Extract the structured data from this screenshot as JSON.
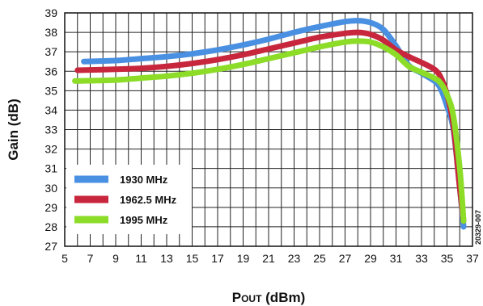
{
  "chart_data": {
    "type": "line",
    "xlabel_main": "P",
    "xlabel_sub": "OUT",
    "xlabel_unit": " (dBm)",
    "ylabel": "Gain (dB)",
    "figure_code": "20329-007",
    "xlim": [
      5,
      37
    ],
    "ylim": [
      27,
      39
    ],
    "x_ticks": [
      5,
      7,
      9,
      11,
      13,
      15,
      17,
      19,
      21,
      23,
      25,
      27,
      29,
      31,
      33,
      35,
      37
    ],
    "y_ticks": [
      27,
      28,
      29,
      30,
      31,
      32,
      33,
      34,
      35,
      36,
      37,
      38,
      39
    ],
    "grid": true,
    "legend_position": "bottom-left",
    "series": [
      {
        "name": "1930 MHz",
        "color": "#4a90e2",
        "x": [
          6.5,
          9,
          11,
          13,
          15,
          17,
          19,
          21,
          23,
          25,
          27,
          28,
          29,
          30,
          31,
          32,
          33,
          34,
          34.5,
          35,
          35.5,
          36,
          36.3
        ],
        "y": [
          36.5,
          36.55,
          36.65,
          36.75,
          36.9,
          37.1,
          37.35,
          37.65,
          38.0,
          38.3,
          38.55,
          38.6,
          38.5,
          38.15,
          37.3,
          36.3,
          35.9,
          35.5,
          35.1,
          34.2,
          33.0,
          30.0,
          28.0
        ]
      },
      {
        "name": "1962.5 MHz",
        "color": "#c8263c",
        "x": [
          6.0,
          9,
          11,
          13,
          15,
          17,
          19,
          21,
          23,
          25,
          27,
          28,
          29,
          30,
          31,
          32,
          33,
          34,
          34.5,
          35,
          35.5,
          36,
          36.3
        ],
        "y": [
          36.05,
          36.1,
          36.15,
          36.25,
          36.4,
          36.6,
          36.85,
          37.15,
          37.45,
          37.75,
          37.95,
          38.0,
          37.9,
          37.6,
          37.1,
          36.75,
          36.45,
          36.1,
          35.7,
          34.8,
          33.2,
          30.0,
          28.3
        ]
      },
      {
        "name": "1995 MHz",
        "color": "#8cdc28",
        "x": [
          5.8,
          9,
          11,
          13,
          15,
          17,
          19,
          21,
          23,
          25,
          27,
          28,
          29,
          30,
          31,
          32,
          33,
          34,
          34.5,
          35,
          35.5,
          36,
          36.3
        ],
        "y": [
          35.5,
          35.55,
          35.65,
          35.75,
          35.9,
          36.1,
          36.35,
          36.65,
          36.95,
          37.25,
          37.5,
          37.55,
          37.5,
          37.25,
          36.85,
          36.25,
          35.95,
          35.65,
          35.4,
          34.8,
          33.7,
          31.0,
          28.3
        ]
      }
    ]
  }
}
